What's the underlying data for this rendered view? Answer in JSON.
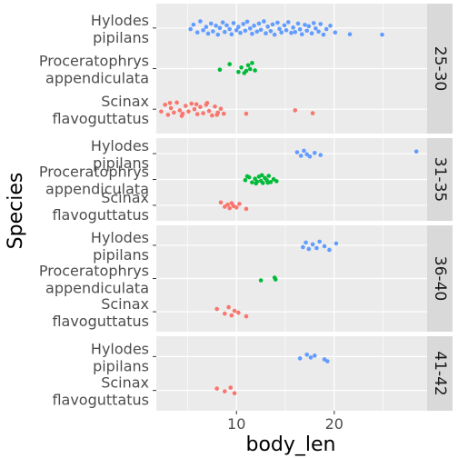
{
  "chart_data": {
    "type": "scatter",
    "xlabel": "body_len",
    "ylabel": "Species",
    "xlim": [
      1.8,
      29.5
    ],
    "x_ticks": [
      10,
      20
    ],
    "grid": true,
    "legend": "none",
    "colors": {
      "Hylodes pipilans": "#619CFF",
      "Proceratophrys appendiculata": "#00BA38",
      "Scinax flavoguttatus": "#F8766D",
      "panel_bg": "#EBEBEB",
      "grid": "#FFFFFF",
      "strip_bg": "#D9D9D9"
    },
    "panels": [
      {
        "label": "25-30",
        "species": [
          {
            "label_lines": [
              "Hylodes",
              "pipilans"
            ],
            "name": "Hylodes pipilans",
            "x": [
              5.3,
              5.6,
              6.0,
              6.3,
              6.6,
              6.9,
              7.1,
              7.4,
              7.6,
              7.9,
              8.1,
              8.3,
              8.6,
              8.8,
              9.0,
              9.3,
              9.5,
              9.7,
              10.0,
              10.2,
              10.4,
              10.7,
              10.9,
              11.1,
              11.4,
              11.6,
              11.8,
              12.1,
              12.3,
              12.5,
              12.8,
              13.0,
              13.2,
              13.5,
              13.7,
              13.9,
              14.2,
              14.4,
              14.6,
              14.9,
              15.1,
              15.3,
              15.6,
              15.8,
              16.0,
              16.3,
              16.5,
              16.7,
              17.0,
              17.2,
              17.4,
              17.7,
              17.9,
              18.1,
              18.4,
              18.6,
              18.9,
              19.2,
              19.6,
              20.1,
              21.6,
              24.9
            ],
            "y": [
              0.05,
              -0.15,
              0.2,
              -0.3,
              0.1,
              -0.05,
              0.25,
              -0.2,
              0.15,
              -0.1,
              0.3,
              0.0,
              -0.25,
              0.18,
              -0.12,
              0.05,
              0.28,
              -0.22,
              0.1,
              -0.05,
              0.22,
              -0.18,
              0.12,
              -0.28,
              0.02,
              0.26,
              -0.1,
              0.16,
              -0.2,
              0.08,
              -0.3,
              0.24,
              -0.06,
              0.14,
              -0.16,
              0.3,
              -0.24,
              0.04,
              0.2,
              -0.12,
              0.1,
              -0.26,
              0.22,
              -0.02,
              0.18,
              -0.2,
              0.06,
              0.28,
              -0.14,
              0.12,
              -0.08,
              0.24,
              -0.22,
              0.02,
              0.16,
              -0.18,
              0.3,
              0.05,
              -0.1,
              0.2,
              0.28,
              0.3
            ]
          },
          {
            "label_lines": [
              "Proceratophrys",
              "appendiculata"
            ],
            "name": "Proceratophrys appendiculata",
            "x": [
              8.3,
              9.3,
              10.2,
              10.5,
              10.8,
              11.0,
              11.2,
              11.4,
              11.6,
              11.9
            ],
            "y": [
              0.05,
              -0.2,
              0.15,
              -0.05,
              0.2,
              0.1,
              -0.15,
              0.02,
              -0.25,
              0.08
            ]
          },
          {
            "label_lines": [
              "Scinax",
              "flavoguttatus"
            ],
            "name": "Scinax flavoguttatus",
            "x": [
              2.3,
              2.7,
              3.0,
              3.3,
              3.6,
              3.9,
              4.2,
              4.5,
              4.8,
              5.1,
              5.4,
              5.7,
              6.0,
              6.3,
              6.6,
              6.9,
              7.2,
              7.5,
              7.8,
              8.1,
              8.4,
              8.7,
              3.2,
              4.4,
              5.9,
              7.0,
              8.0,
              11.0,
              16.0,
              17.8
            ],
            "y": [
              0.1,
              -0.2,
              0.25,
              -0.05,
              0.15,
              -0.3,
              0.05,
              0.2,
              -0.15,
              0.1,
              -0.25,
              0.0,
              0.22,
              -0.1,
              0.18,
              -0.2,
              0.08,
              0.28,
              -0.12,
              0.15,
              -0.02,
              0.2,
              -0.28,
              0.3,
              -0.22,
              -0.28,
              0.25,
              0.2,
              0.05,
              0.18
            ]
          }
        ]
      },
      {
        "label": "31-35",
        "species": [
          {
            "label_lines": [
              "Hylodes",
              "pipilans"
            ],
            "name": "Hylodes pipilans",
            "x": [
              16.2,
              16.6,
              16.9,
              17.2,
              17.5,
              18.0,
              18.6,
              28.4
            ],
            "y": [
              -0.1,
              0.15,
              -0.2,
              0.05,
              0.2,
              -0.05,
              0.1,
              -0.15
            ]
          },
          {
            "label_lines": [
              "Proceratophrys",
              "appendiculata"
            ],
            "name": "Proceratophrys appendiculata",
            "x": [
              10.9,
              11.3,
              11.6,
              11.9,
              12.1,
              12.3,
              12.5,
              12.7,
              12.9,
              13.1,
              13.3,
              13.5,
              13.8,
              14.1,
              11.1,
              12.0,
              12.6,
              13.2
            ],
            "y": [
              0.05,
              -0.15,
              0.2,
              -0.05,
              0.15,
              -0.2,
              0.1,
              0.25,
              -0.1,
              0.05,
              -0.25,
              0.18,
              -0.02,
              0.12,
              -0.22,
              0.28,
              -0.3,
              0.22
            ]
          },
          {
            "label_lines": [
              "Scinax",
              "flavoguttatus"
            ],
            "name": "Scinax flavoguttatus",
            "x": [
              8.4,
              8.8,
              9.1,
              9.3,
              9.5,
              9.7,
              10.0,
              10.3,
              11.0
            ],
            "y": [
              -0.2,
              0.1,
              -0.05,
              0.2,
              -0.15,
              0.05,
              0.15,
              -0.1,
              0.25
            ]
          }
        ]
      },
      {
        "label": "36-40",
        "species": [
          {
            "label_lines": [
              "Hylodes",
              "pipilans"
            ],
            "name": "Hylodes pipilans",
            "x": [
              16.8,
              17.1,
              17.4,
              17.8,
              18.2,
              18.5,
              19.0,
              19.5,
              20.2
            ],
            "y": [
              0.1,
              -0.15,
              0.2,
              -0.05,
              0.15,
              -0.2,
              0.05,
              0.25,
              -0.1
            ]
          },
          {
            "label_lines": [
              "Proceratophrys",
              "appendiculata"
            ],
            "name": "Proceratophrys appendiculata",
            "x": [
              12.5,
              13.9,
              14.0
            ],
            "y": [
              0.1,
              -0.05,
              0.05
            ]
          },
          {
            "label_lines": [
              "Scinax",
              "flavoguttatus"
            ],
            "name": "Scinax flavoguttatus",
            "x": [
              8.0,
              8.8,
              9.2,
              9.5,
              9.8,
              10.2,
              11.0
            ],
            "y": [
              -0.15,
              0.1,
              -0.25,
              0.2,
              -0.05,
              0.05,
              0.25
            ]
          }
        ]
      },
      {
        "label": "41-42",
        "species": [
          {
            "label_lines": [
              "Hylodes",
              "pipilans"
            ],
            "name": "Hylodes pipilans",
            "x": [
              16.5,
              17.2,
              17.6,
              18.0,
              19.0,
              19.3
            ],
            "y": [
              0.1,
              -0.1,
              0.05,
              -0.05,
              0.15,
              0.25
            ]
          },
          {
            "label_lines": [
              "Scinax",
              "flavoguttatus"
            ],
            "name": "Scinax flavoguttatus",
            "x": [
              8.0,
              8.8,
              9.4,
              9.8
            ],
            "y": [
              -0.1,
              0.05,
              -0.15,
              0.15
            ]
          }
        ]
      }
    ]
  }
}
